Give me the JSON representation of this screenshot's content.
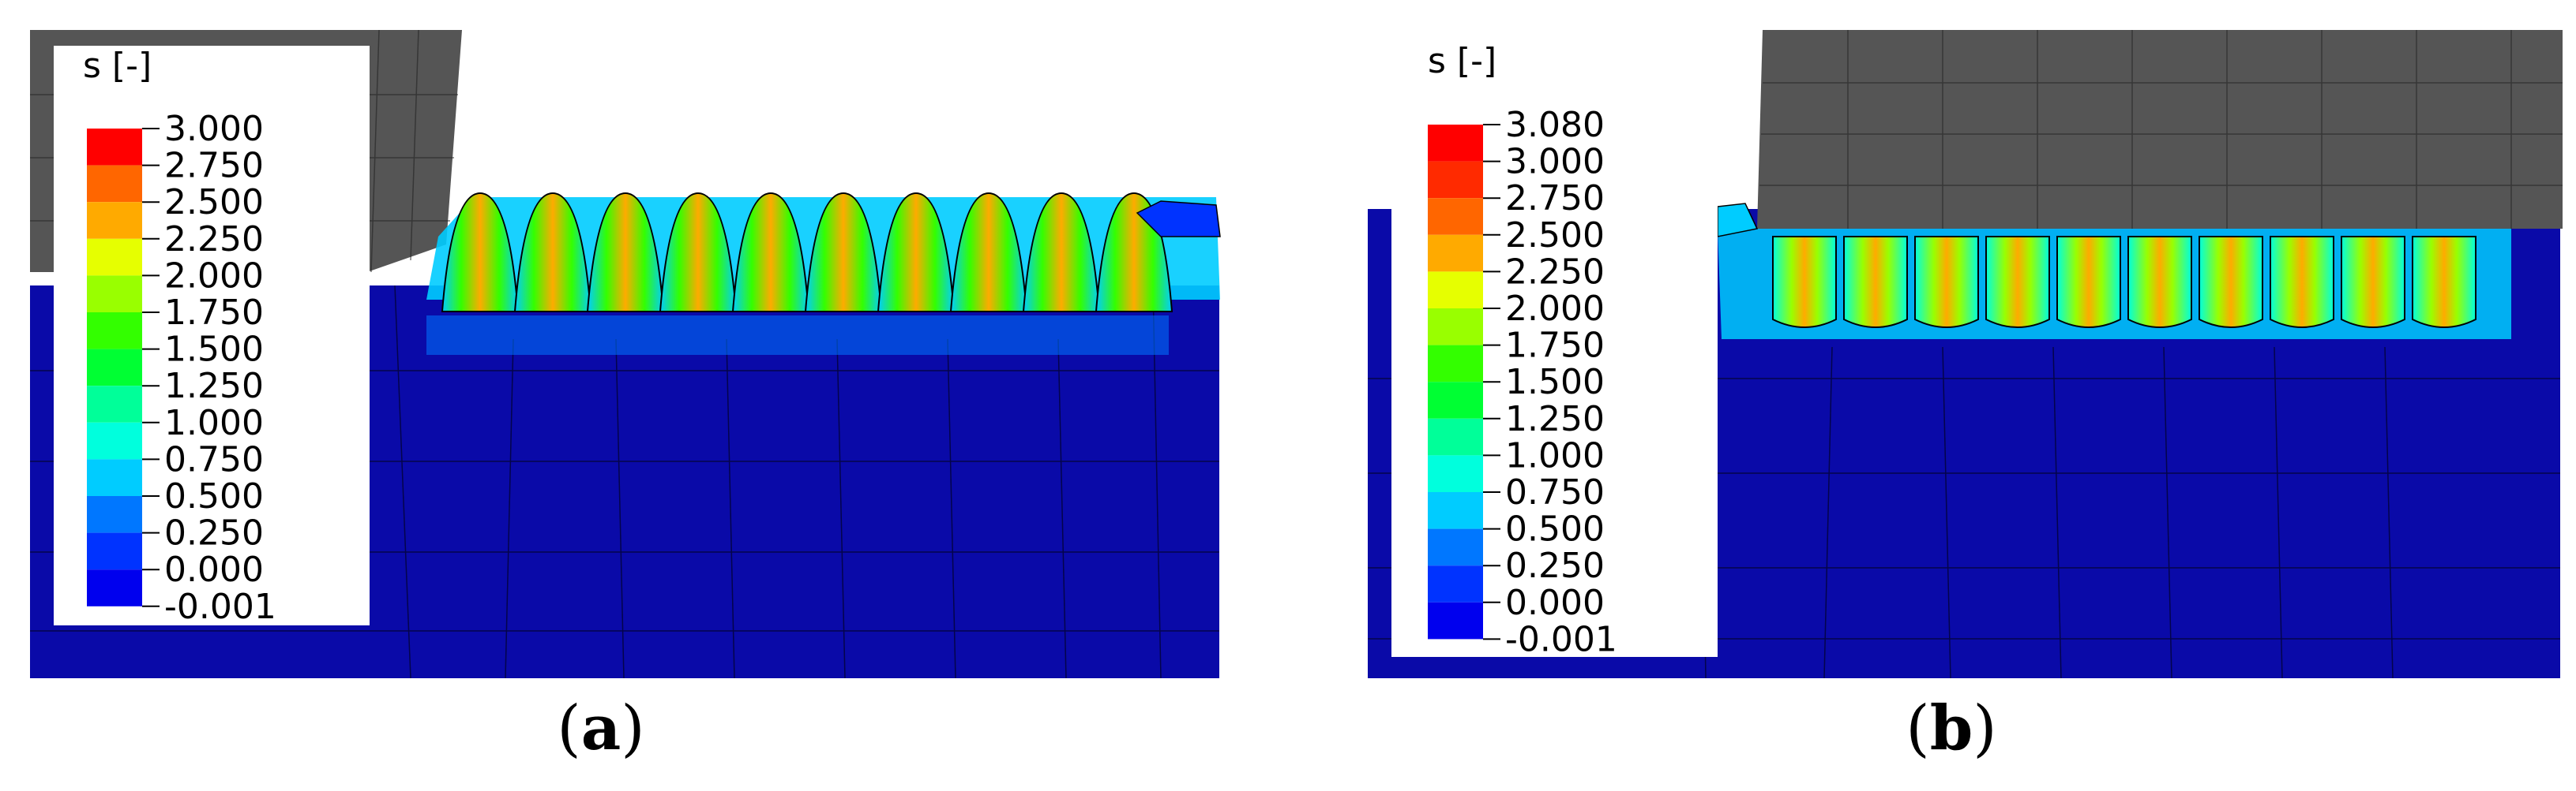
{
  "panels": [
    {
      "id": "a",
      "caption_letter": "a",
      "legend": {
        "title": "s [-]",
        "ticks": [
          "3.000",
          "2.750",
          "2.500",
          "2.250",
          "2.000",
          "1.750",
          "1.500",
          "1.250",
          "1.000",
          "0.750",
          "0.500",
          "0.250",
          "0.000",
          "-0.001"
        ],
        "colors": [
          "#ff0000",
          "#ff6600",
          "#ffaa00",
          "#e6ff00",
          "#99ff00",
          "#33ff00",
          "#00ff33",
          "#00ff99",
          "#00ffdd",
          "#00ccff",
          "#0077ff",
          "#0033ff",
          "#0000ee"
        ]
      }
    },
    {
      "id": "b",
      "caption_letter": "b",
      "legend": {
        "title": "s [-]",
        "ticks": [
          "3.080",
          "3.000",
          "2.750",
          "2.500",
          "2.250",
          "2.000",
          "1.750",
          "1.500",
          "1.250",
          "1.000",
          "0.750",
          "0.500",
          "0.250",
          "0.000",
          "-0.001"
        ],
        "colors": [
          "#ff0000",
          "#ff2a00",
          "#ff6600",
          "#ffaa00",
          "#e6ff00",
          "#99ff00",
          "#33ff00",
          "#00ff33",
          "#00ff99",
          "#00ffdd",
          "#00ccff",
          "#0077ff",
          "#0033ff",
          "#0000ee"
        ]
      }
    }
  ],
  "colors": {
    "substrate": "#0a0aa8",
    "tool": "#555555",
    "mesh": "#000000"
  }
}
